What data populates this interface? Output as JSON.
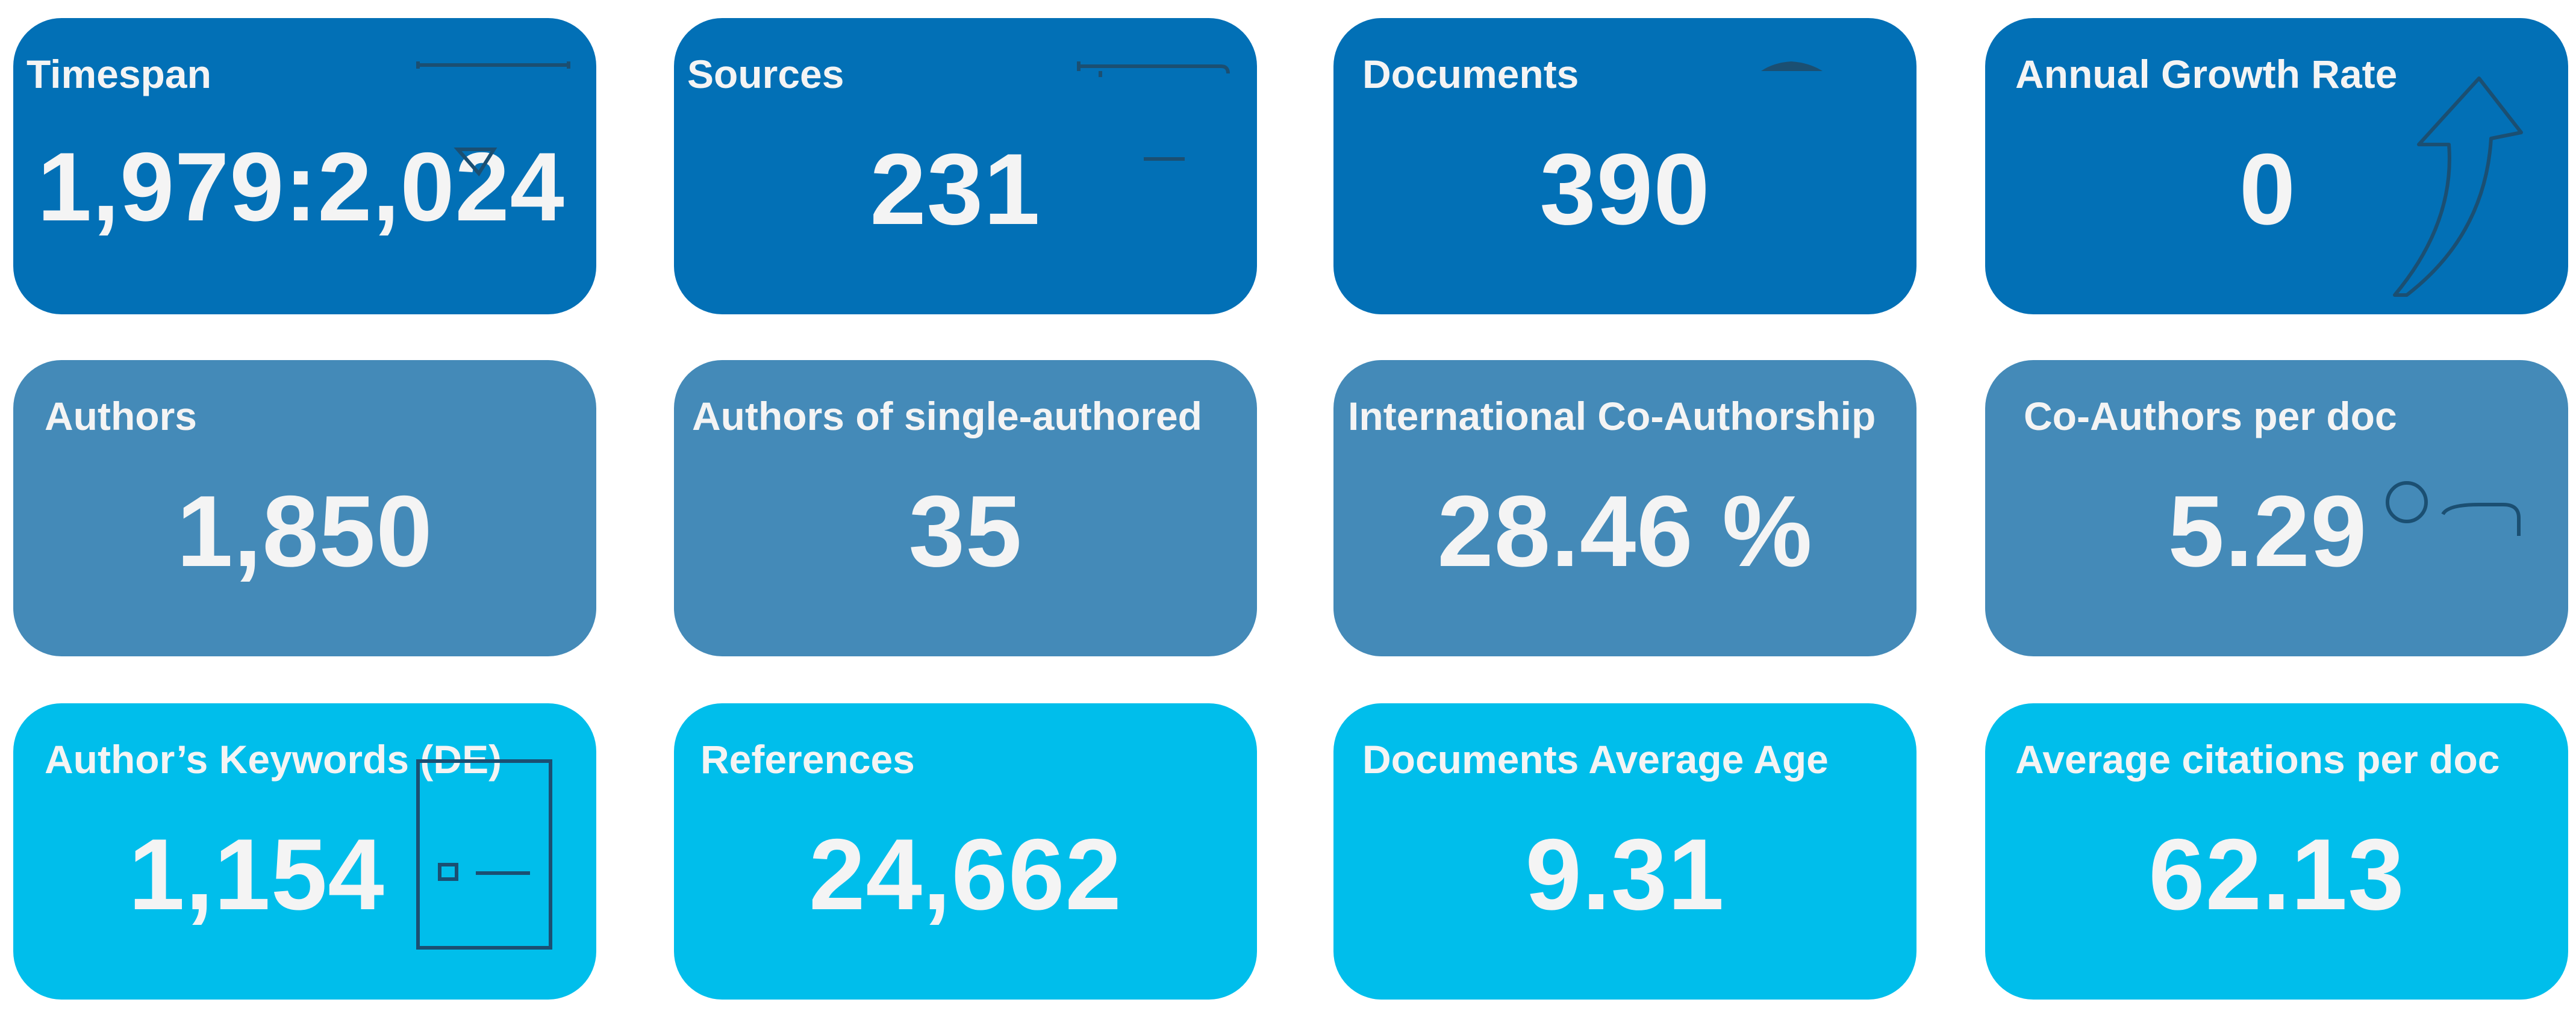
{
  "cards": [
    {
      "label": "Timespan",
      "value": "1,979:2,024",
      "icon": "calendar-icon"
    },
    {
      "label": "Sources",
      "value": "231",
      "icon": "book-icon"
    },
    {
      "label": "Documents",
      "value": "390",
      "icon": "document-icon"
    },
    {
      "label": "Annual Growth Rate",
      "value": "0",
      "icon": "arrow-up-icon"
    },
    {
      "label": "Authors",
      "value": "1,850",
      "icon": ""
    },
    {
      "label": "Authors of single-authored",
      "value": "35",
      "icon": ""
    },
    {
      "label": "International Co-Authorship",
      "value": "28.46 %",
      "icon": ""
    },
    {
      "label": "Co-Authors per doc",
      "value": "5.29",
      "icon": "users-icon"
    },
    {
      "label": "Author’s Keywords (DE)",
      "value": "1,154",
      "icon": "keyword-icon"
    },
    {
      "label": "References",
      "value": "24,662",
      "icon": ""
    },
    {
      "label": "Documents Average Age",
      "value": "9.31",
      "icon": ""
    },
    {
      "label": "Average citations per doc",
      "value": "62.13",
      "icon": ""
    }
  ],
  "colors": {
    "row1": "#0270b6",
    "row2": "#448ab8",
    "row3": "#00beeb",
    "text": "#f4f4f4",
    "icon_stroke": "#1b4f72"
  }
}
